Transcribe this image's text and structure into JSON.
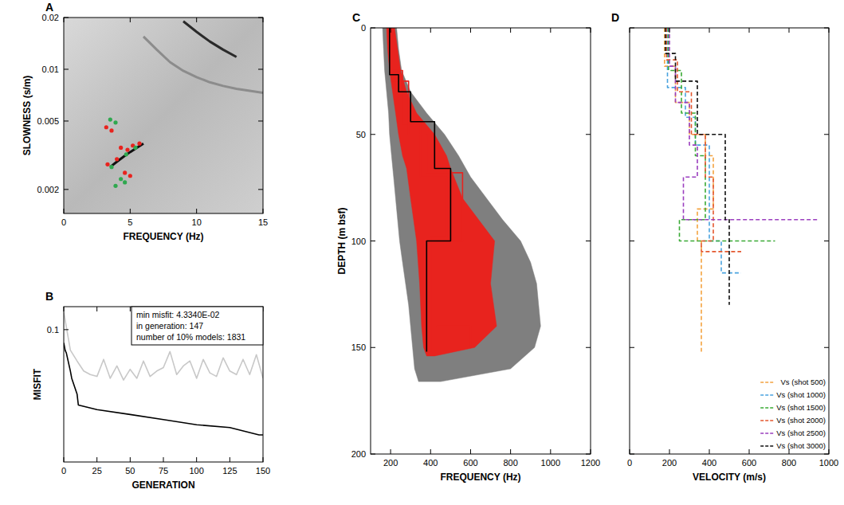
{
  "chart_data": [
    {
      "type": "scatter",
      "title": "A",
      "x_label": "FREQUENCY (Hz)",
      "y_label": "SLOWNESS (s/m)",
      "xlim": [
        0,
        15
      ],
      "xticks": [
        0,
        5,
        10,
        15
      ],
      "ylim": [
        0.00145,
        0.02
      ],
      "yticks": [
        0.002,
        0.005,
        0.01,
        0.02
      ],
      "log": "y",
      "series": [
        {
          "type": "line",
          "color": "#2a2a2a",
          "x": [
            9,
            10,
            11,
            12,
            13
          ],
          "values": [
            0.019,
            0.0165,
            0.0145,
            0.013,
            0.0118
          ]
        },
        {
          "type": "line",
          "color": "#8c8c8c",
          "x": [
            6,
            7,
            8,
            9,
            10,
            11,
            12,
            13,
            14,
            15
          ],
          "values": [
            0.0155,
            0.013,
            0.011,
            0.0098,
            0.009,
            0.0084,
            0.008,
            0.0077,
            0.0075,
            0.0073
          ]
        },
        {
          "type": "line",
          "color": "#111111",
          "x": [
            3.5,
            4,
            4.5,
            5,
            5.5,
            6
          ],
          "values": [
            0.0027,
            0.0029,
            0.0031,
            0.0033,
            0.0035,
            0.0037
          ]
        },
        {
          "color": "#e8231e",
          "marker": "circle",
          "x": [
            3.2,
            3.6,
            4.3,
            4.8,
            5.2,
            5.7,
            3.3,
            4.0,
            4.6,
            5.0
          ],
          "values": [
            0.0046,
            0.0044,
            0.0035,
            0.0034,
            0.0036,
            0.0037,
            0.0028,
            0.003,
            0.0025,
            0.0024
          ]
        },
        {
          "color": "#2fa84f",
          "marker": "circle",
          "x": [
            3.5,
            3.9,
            3.6,
            4.7,
            5.4,
            3.9,
            4.3,
            4.6
          ],
          "values": [
            0.0051,
            0.0049,
            0.0027,
            0.0032,
            0.0035,
            0.0021,
            0.0023,
            0.0022
          ]
        }
      ]
    },
    {
      "type": "line",
      "title": "B",
      "x_label": "GENERATION",
      "y_label": "MISFIT",
      "xlim": [
        0,
        150
      ],
      "xticks": [
        0,
        25,
        50,
        75,
        100,
        125,
        150
      ],
      "ylim": [
        0.035,
        0.12
      ],
      "yticks": [
        0.1
      ],
      "log": "y",
      "annotations": [
        "min misfit: 4.3340E-02",
        "in generation: 147",
        "number of 10% models: 1831"
      ],
      "series": [
        {
          "color": "#c8c8c8",
          "x": [
            0,
            5,
            10,
            15,
            20,
            25,
            30,
            35,
            40,
            45,
            50,
            55,
            60,
            65,
            70,
            75,
            80,
            85,
            90,
            95,
            100,
            105,
            110,
            115,
            120,
            125,
            130,
            135,
            140,
            145,
            150
          ],
          "values": [
            0.115,
            0.085,
            0.078,
            0.072,
            0.07,
            0.069,
            0.079,
            0.068,
            0.075,
            0.067,
            0.073,
            0.068,
            0.078,
            0.069,
            0.072,
            0.074,
            0.084,
            0.07,
            0.075,
            0.078,
            0.068,
            0.079,
            0.071,
            0.069,
            0.08,
            0.072,
            0.07,
            0.079,
            0.07,
            0.082,
            0.068
          ]
        },
        {
          "color": "#000000",
          "x": [
            0,
            1,
            2,
            5,
            6,
            10,
            11,
            25,
            50,
            75,
            100,
            125,
            147,
            150
          ],
          "values": [
            0.09,
            0.085,
            0.083,
            0.072,
            0.068,
            0.06,
            0.055,
            0.053,
            0.051,
            0.049,
            0.047,
            0.046,
            0.0434,
            0.0434
          ]
        }
      ]
    },
    {
      "type": "line",
      "title": "C",
      "x_label": "FREQUENCY (Hz)",
      "y_label": "DEPTH (m bsf)",
      "xlim": [
        100,
        1200
      ],
      "xticks": [
        200,
        400,
        600,
        800,
        1000,
        1200
      ],
      "ylim": [
        200,
        0
      ],
      "yticks": [
        0,
        50,
        100,
        150,
        200
      ],
      "series": [
        {
          "type": "band",
          "color": "#7f7f7f",
          "values": [
            0,
            10,
            20,
            30,
            40,
            50,
            60,
            70,
            80,
            90,
            100,
            110,
            120,
            130,
            140,
            150,
            160,
            166
          ],
          "low": [
            160,
            165,
            170,
            180,
            190,
            195,
            205,
            215,
            225,
            235,
            245,
            260,
            275,
            290,
            300,
            310,
            320,
            340
          ],
          "high": [
            230,
            240,
            255,
            300,
            380,
            470,
            540,
            600,
            680,
            760,
            850,
            900,
            930,
            940,
            950,
            920,
            800,
            450
          ]
        },
        {
          "type": "band",
          "color": "#e8231e",
          "values": [
            0,
            10,
            20,
            30,
            40,
            50,
            60,
            66,
            80,
            100,
            120,
            140,
            150,
            154
          ],
          "low": [
            180,
            185,
            195,
            210,
            225,
            240,
            260,
            280,
            300,
            330,
            345,
            355,
            365,
            380
          ],
          "high": [
            220,
            235,
            250,
            280,
            330,
            420,
            480,
            500,
            560,
            720,
            700,
            730,
            620,
            420
          ]
        },
        {
          "color": "#e8231e",
          "x": [
            200,
            200,
            260,
            260,
            350,
            350,
            480,
            480,
            400,
            400
          ],
          "values": [
            0,
            20,
            20,
            45,
            45,
            70,
            70,
            98,
            98,
            152
          ]
        },
        {
          "color": "#e8231e",
          "x": [
            210,
            210,
            290,
            290,
            380,
            380,
            560,
            560,
            430,
            430,
            600,
            600
          ],
          "values": [
            0,
            25,
            25,
            50,
            50,
            68,
            68,
            100,
            100,
            140,
            140,
            150
          ]
        },
        {
          "color": "#000000",
          "x": [
            195,
            195,
            240,
            240,
            300,
            300,
            420,
            420,
            500,
            500,
            380,
            380
          ],
          "values": [
            0,
            22,
            22,
            30,
            30,
            44,
            44,
            66,
            66,
            100,
            100,
            152
          ]
        }
      ]
    },
    {
      "type": "line",
      "title": "D",
      "x_label": "VELOCITY (m/s)",
      "xlim": [
        0,
        1000
      ],
      "xticks": [
        0,
        200,
        400,
        600,
        800,
        1000
      ],
      "ylim": [
        200,
        0
      ],
      "yticks": [
        0,
        50,
        100,
        150,
        200
      ],
      "tick_labels": "x",
      "legend": "lower right",
      "line_style": "dashed",
      "series": [
        {
          "name": "Vs (shot 500)",
          "color": "#f4a340",
          "x": [
            175,
            175,
            230,
            230,
            300,
            300,
            380,
            380,
            420,
            420,
            340,
            340,
            360,
            360
          ],
          "values": [
            0,
            18,
            18,
            35,
            35,
            50,
            50,
            60,
            60,
            85,
            85,
            100,
            100,
            152
          ]
        },
        {
          "name": "Vs (shot 1000)",
          "color": "#4aa3df",
          "x": [
            190,
            190,
            280,
            280,
            330,
            330,
            400,
            400,
            460,
            460,
            560
          ],
          "values": [
            0,
            28,
            28,
            42,
            42,
            55,
            55,
            100,
            100,
            115,
            115
          ]
        },
        {
          "name": "Vs (shot 1500)",
          "color": "#3aaa35",
          "x": [
            195,
            195,
            260,
            260,
            330,
            330,
            380,
            380,
            250,
            250,
            730
          ],
          "values": [
            0,
            20,
            20,
            40,
            40,
            60,
            60,
            90,
            90,
            100,
            100
          ]
        },
        {
          "name": "Vs (shot 2000)",
          "color": "#e4572e",
          "x": [
            185,
            185,
            240,
            240,
            310,
            310,
            380,
            380,
            420,
            420,
            360,
            360,
            560
          ],
          "values": [
            0,
            15,
            15,
            30,
            30,
            50,
            50,
            70,
            70,
            100,
            100,
            105,
            105
          ]
        },
        {
          "name": "Vs (shot 2500)",
          "color": "#9b3fbf",
          "x": [
            200,
            200,
            230,
            230,
            300,
            300,
            340,
            340,
            270,
            270,
            950
          ],
          "values": [
            0,
            18,
            18,
            35,
            35,
            55,
            55,
            70,
            70,
            90,
            90
          ]
        },
        {
          "name": "Vs (shot 3000)",
          "color": "#111111",
          "x": [
            180,
            180,
            230,
            230,
            340,
            340,
            480,
            480,
            500,
            500
          ],
          "values": [
            0,
            12,
            12,
            25,
            25,
            50,
            50,
            90,
            90,
            130
          ]
        }
      ]
    }
  ]
}
